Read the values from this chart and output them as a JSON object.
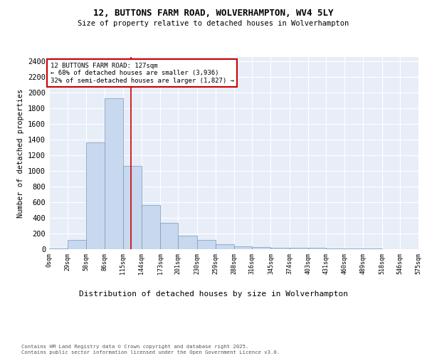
{
  "title1": "12, BUTTONS FARM ROAD, WOLVERHAMPTON, WV4 5LY",
  "title2": "Size of property relative to detached houses in Wolverhampton",
  "xlabel": "Distribution of detached houses by size in Wolverhampton",
  "ylabel": "Number of detached properties",
  "footnote": "Contains HM Land Registry data © Crown copyright and database right 2025.\nContains public sector information licensed under the Open Government Licence v3.0.",
  "bar_color": "#c8d8ee",
  "bar_edge_color": "#7799bb",
  "annotation_box_color": "#cc0000",
  "vline_color": "#cc0000",
  "property_sqm": 127,
  "annotation_text": "12 BUTTONS FARM ROAD: 127sqm\n← 68% of detached houses are smaller (3,936)\n32% of semi-detached houses are larger (1,827) →",
  "bins": [
    0,
    29,
    58,
    86,
    115,
    144,
    173,
    201,
    230,
    259,
    288,
    316,
    345,
    374,
    403,
    431,
    460,
    489,
    518,
    546,
    575
  ],
  "bin_labels": [
    "0sqm",
    "29sqm",
    "58sqm",
    "86sqm",
    "115sqm",
    "144sqm",
    "173sqm",
    "201sqm",
    "230sqm",
    "259sqm",
    "288sqm",
    "316sqm",
    "345sqm",
    "374sqm",
    "403sqm",
    "431sqm",
    "460sqm",
    "489sqm",
    "518sqm",
    "546sqm",
    "575sqm"
  ],
  "bar_heights": [
    10,
    120,
    1360,
    1920,
    1060,
    560,
    335,
    170,
    115,
    63,
    38,
    30,
    22,
    20,
    16,
    5,
    5,
    5,
    2,
    2
  ],
  "ylim": [
    0,
    2450
  ],
  "yticks": [
    0,
    200,
    400,
    600,
    800,
    1000,
    1200,
    1400,
    1600,
    1800,
    2000,
    2200,
    2400
  ],
  "bg_color": "#e8eef8",
  "grid_color": "#ffffff"
}
